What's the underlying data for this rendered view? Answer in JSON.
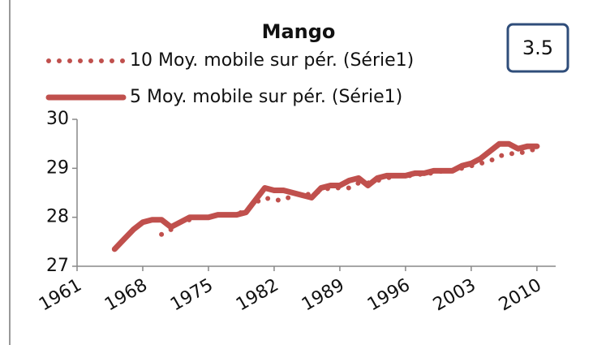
{
  "chart_data": {
    "type": "line",
    "title": "Mango",
    "annotation": "3.5",
    "x": [
      1961,
      1962,
      1963,
      1964,
      1965,
      1966,
      1967,
      1968,
      1969,
      1970,
      1971,
      1972,
      1973,
      1974,
      1975,
      1976,
      1977,
      1978,
      1979,
      1980,
      1981,
      1982,
      1983,
      1984,
      1985,
      1986,
      1987,
      1988,
      1989,
      1990,
      1991,
      1992,
      1993,
      1994,
      1995,
      1996,
      1997,
      1998,
      1999,
      2000,
      2001,
      2002,
      2003,
      2004,
      2005,
      2006,
      2007,
      2008,
      2009,
      2010
    ],
    "series": [
      {
        "name": "10 Moy. mobile sur pér. (Série1)",
        "color": "#c0504d",
        "style": "dotted",
        "values": [
          null,
          null,
          null,
          null,
          null,
          null,
          null,
          null,
          null,
          27.65,
          27.75,
          27.9,
          27.95,
          28.0,
          28.0,
          28.05,
          28.05,
          28.05,
          28.15,
          28.3,
          28.4,
          28.35,
          28.35,
          28.45,
          28.5,
          28.45,
          28.55,
          28.6,
          28.6,
          28.6,
          28.7,
          28.7,
          28.75,
          28.8,
          28.85,
          28.85,
          28.85,
          28.9,
          28.9,
          28.95,
          28.95,
          29.0,
          29.05,
          29.1,
          29.15,
          29.25,
          29.3,
          29.3,
          29.35,
          29.4
        ]
      },
      {
        "name": "5 Moy. mobile sur pér. (Série1)",
        "color": "#c0504d",
        "style": "solid",
        "values": [
          null,
          null,
          null,
          null,
          27.35,
          27.55,
          27.75,
          27.9,
          27.95,
          27.95,
          27.8,
          27.9,
          28.0,
          28.0,
          28.0,
          28.05,
          28.05,
          28.05,
          28.1,
          28.35,
          28.6,
          28.55,
          28.55,
          28.5,
          28.45,
          28.4,
          28.6,
          28.65,
          28.65,
          28.75,
          28.8,
          28.65,
          28.8,
          28.85,
          28.85,
          28.85,
          28.9,
          28.9,
          28.95,
          28.95,
          28.95,
          29.05,
          29.1,
          29.2,
          29.35,
          29.5,
          29.5,
          29.4,
          29.45,
          29.45
        ]
      }
    ],
    "xlim": [
      1961,
      2012
    ],
    "xticks": [
      1961,
      1968,
      1975,
      1982,
      1989,
      1996,
      2003,
      2010
    ],
    "ylim": [
      27,
      30
    ],
    "yticks": [
      27,
      28,
      29,
      30
    ],
    "grid": false
  }
}
